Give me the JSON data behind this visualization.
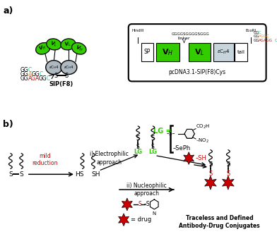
{
  "panel_a_label": "a)",
  "panel_b_label": "b)",
  "sip_label": "SIP(F8)",
  "plasmid_label": "pcDNA3.1-SIP(F8)Cys",
  "linker_seq": "GGGGSGGGGSGGG",
  "hindiii_label": "HindIII",
  "ecori_label": "EcoRI",
  "linker_label": "linker",
  "green_color": "#33cc00",
  "gray_color": "#adb8c0",
  "light_gray": "#c8d4dc",
  "red_color": "#cc0000",
  "orange_color": "#ff8c00",
  "cyan_color": "#00cc99",
  "mild_reduction_text": "mild\nreduction",
  "electrophilic_text": "i) Electrophilic\napproach",
  "nucleophilic_text": "ii) Nucleophilic\napproach",
  "traceless_label": "Traceless and Defined\nAntibody-Drug Conjugates",
  "background": "white"
}
